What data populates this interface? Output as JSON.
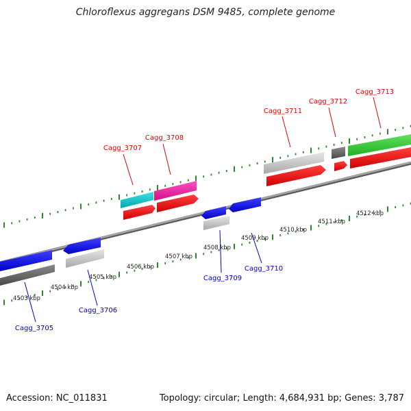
{
  "title": "Chloroflexus aggregans DSM 9485, complete genome",
  "footer": {
    "accession": "Accession: NC_011831",
    "summary": "Topology: circular; Length: 4,684,931 bp; Genes: 3,787"
  },
  "colors": {
    "tick": "#2a8a2a",
    "forward_label": "#e00000",
    "reverse_label": "#0000cc",
    "backbone": "#8a8a8a"
  },
  "scale_ticks": [
    {
      "label": "4503 kbp"
    },
    {
      "label": "4504 kbp"
    },
    {
      "label": "4505 kbp"
    },
    {
      "label": "4506 kbp"
    },
    {
      "label": "4507 kbp"
    },
    {
      "label": "4508 kbp"
    },
    {
      "label": "4509 kbp"
    },
    {
      "label": "4510 kbp"
    },
    {
      "label": "4511 kbp"
    },
    {
      "label": "4512 kbp"
    }
  ],
  "genes": [
    {
      "label": "Cagg_3705",
      "strand": "reverse"
    },
    {
      "label": "Cagg_3706",
      "strand": "reverse"
    },
    {
      "label": "Cagg_3707",
      "strand": "forward"
    },
    {
      "label": "Cagg_3708",
      "strand": "forward"
    },
    {
      "label": "Cagg_3709",
      "strand": "reverse"
    },
    {
      "label": "Cagg_3710",
      "strand": "reverse"
    },
    {
      "label": "Cagg_3711",
      "strand": "forward"
    },
    {
      "label": "Cagg_3712",
      "strand": "forward"
    },
    {
      "label": "Cagg_3713",
      "strand": "forward"
    }
  ]
}
